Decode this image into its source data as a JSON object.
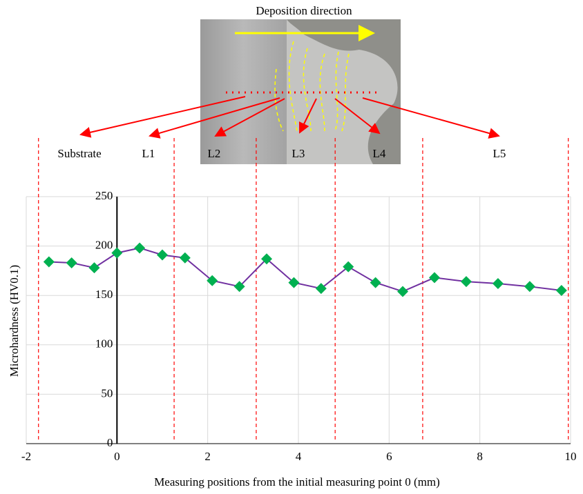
{
  "chart_data": {
    "type": "line",
    "title": "Deposition direction",
    "x_label": "Measuring positions from the initial measuring point 0 (mm)",
    "y_label": "Microhardness (HV0.1)",
    "x": [
      -1.5,
      -1.0,
      -0.5,
      0,
      0.5,
      1.0,
      1.5,
      2.1,
      2.7,
      3.3,
      3.9,
      4.5,
      5.1,
      5.7,
      6.3,
      7.0,
      7.7,
      8.4,
      9.1,
      9.8
    ],
    "values": [
      184,
      183,
      178,
      193,
      198,
      191,
      188,
      165,
      159,
      187,
      163,
      157,
      179,
      163,
      154,
      168,
      164,
      162,
      159,
      155
    ],
    "line_color": "#7030a0",
    "marker_color": "#00b050",
    "regions": [
      "Substrate",
      "L1",
      "L2",
      "L3",
      "L4",
      "L5"
    ],
    "region_boundaries": [
      -1.73,
      1.26,
      3.07,
      4.81,
      6.74,
      9.95
    ],
    "region_boundary_color": "#ff0000",
    "xlim": [
      -2,
      10
    ],
    "xticks": [
      -2,
      0,
      2,
      4,
      6,
      8,
      10
    ],
    "ylim": [
      0,
      250
    ],
    "yticks": [
      0,
      50,
      100,
      150,
      200,
      250
    ],
    "grid": true
  }
}
